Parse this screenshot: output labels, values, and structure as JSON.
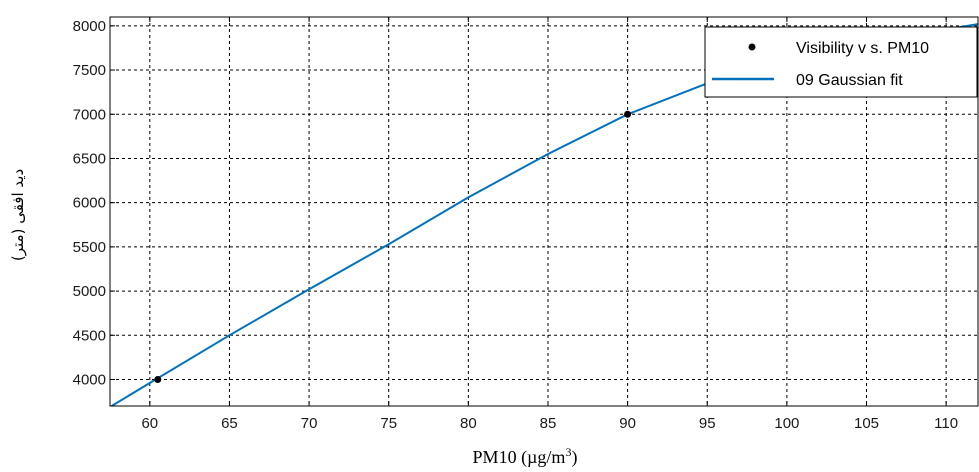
{
  "chart_data": {
    "type": "line",
    "xlabel_main": "PM10 (µg/m",
    "xlabel_sup": "3",
    "xlabel_tail": ")",
    "ylabel": "دید افقی (متر)",
    "xlim": [
      57.5,
      112
    ],
    "ylim": [
      3700,
      8100
    ],
    "xticks": [
      60,
      65,
      70,
      75,
      80,
      85,
      90,
      95,
      100,
      105,
      110
    ],
    "yticks": [
      4000,
      4500,
      5000,
      5500,
      6000,
      6500,
      7000,
      7500,
      8000
    ],
    "grid": true,
    "legend_position": "top-right",
    "series": [
      {
        "name": "Visibility v s. PM10",
        "kind": "points",
        "color": "#000000",
        "x": [
          60.5,
          90
        ],
        "y": [
          4000,
          7000
        ]
      },
      {
        "name": "09 Gaussian fit",
        "kind": "line",
        "color": "#0072bd",
        "x": [
          57.6,
          60,
          65,
          70,
          75,
          80,
          85,
          90,
          95,
          100,
          105,
          110,
          112
        ],
        "y": [
          3700,
          3960,
          4500,
          5020,
          5530,
          6060,
          6550,
          7000,
          7350,
          7600,
          7800,
          7960,
          8020
        ]
      }
    ]
  }
}
